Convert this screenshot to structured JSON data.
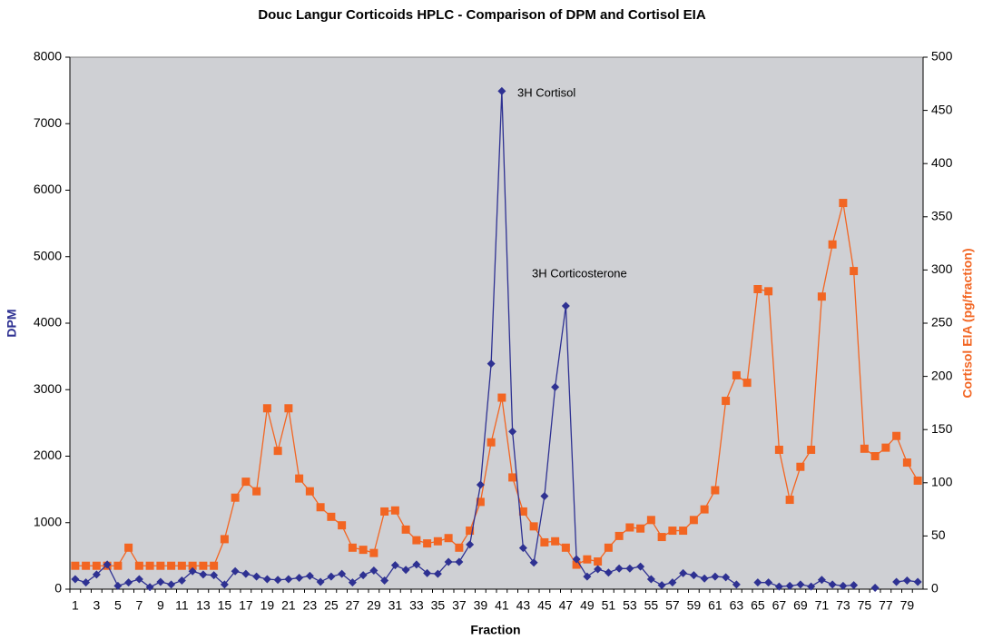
{
  "chart_data": {
    "type": "line",
    "title": "Douc Langur Corticoids HPLC - Comparison of DPM and Cortisol EIA",
    "x_label": "Fraction",
    "y_label": "DPM",
    "y2_label": "Cortisol EIA (pg/fraction)",
    "categories": [
      "1",
      null,
      "3",
      null,
      "5",
      null,
      "7",
      null,
      "9",
      null,
      "11",
      null,
      "13",
      null,
      "15",
      null,
      "17",
      null,
      "19",
      null,
      "21",
      null,
      "23",
      null,
      "25",
      null,
      "27",
      null,
      "29",
      null,
      "31",
      null,
      "33",
      null,
      "35",
      null,
      "37",
      null,
      "39",
      null,
      "41",
      null,
      "43",
      null,
      "45",
      null,
      "47",
      null,
      "49",
      null,
      "51",
      null,
      "53",
      null,
      "55",
      null,
      "57",
      null,
      "59",
      null,
      "61",
      null,
      "63",
      null,
      "65",
      null,
      "67",
      null,
      "69",
      null,
      "71",
      null,
      "73",
      null,
      "75",
      null,
      "77",
      null,
      "79",
      null
    ],
    "series": [
      {
        "name": "DPM",
        "color": "#2e3192",
        "marker": "diamond",
        "values": [
          150,
          100,
          220,
          370,
          50,
          100,
          150,
          30,
          110,
          70,
          130,
          270,
          220,
          210,
          70,
          270,
          230,
          190,
          150,
          140,
          150,
          170,
          200,
          110,
          190,
          230,
          100,
          210,
          280,
          130,
          360,
          290,
          370,
          240,
          230,
          410,
          410,
          670,
          1570,
          3390,
          7490,
          2370,
          620,
          400,
          1400,
          3040,
          4260,
          450,
          190,
          300,
          250,
          310,
          310,
          340,
          150,
          60,
          100,
          240,
          210,
          160,
          190,
          180,
          70,
          null,
          100,
          100,
          40,
          50,
          70,
          40,
          140,
          70,
          50,
          60,
          null,
          20,
          null,
          110,
          130,
          110
        ]
      },
      {
        "name": "Cortisol EIA",
        "color": "#f26522",
        "marker": "square",
        "axis": "y2",
        "values": [
          22,
          22,
          22,
          22,
          22,
          39,
          22,
          22,
          22,
          22,
          22,
          22,
          22,
          22,
          47,
          86,
          101,
          92,
          170,
          130,
          170,
          104,
          92,
          77,
          68,
          60,
          39,
          37,
          34,
          73,
          74,
          56,
          46,
          43,
          45,
          48,
          39,
          55,
          82,
          138,
          180,
          105,
          73,
          59,
          44,
          45,
          39,
          23,
          28,
          26,
          39,
          50,
          58,
          57,
          65,
          49,
          55,
          55,
          65,
          75,
          93,
          177,
          201,
          194,
          282,
          280,
          131,
          84,
          115,
          131,
          275,
          324,
          363,
          299,
          132,
          125,
          133,
          144,
          119,
          102
        ]
      }
    ],
    "annotations": [
      {
        "text": "3H Cortisol"
      },
      {
        "text": "3H Corticosterone"
      }
    ],
    "ylim": [
      0,
      8000
    ],
    "yticks": [
      0,
      1000,
      2000,
      3000,
      4000,
      5000,
      6000,
      7000,
      8000
    ],
    "y2lim": [
      0,
      500
    ],
    "y2ticks": [
      0,
      50,
      100,
      150,
      200,
      250,
      300,
      350,
      400,
      450,
      500
    ],
    "plot_background": "#cfd0d4"
  }
}
